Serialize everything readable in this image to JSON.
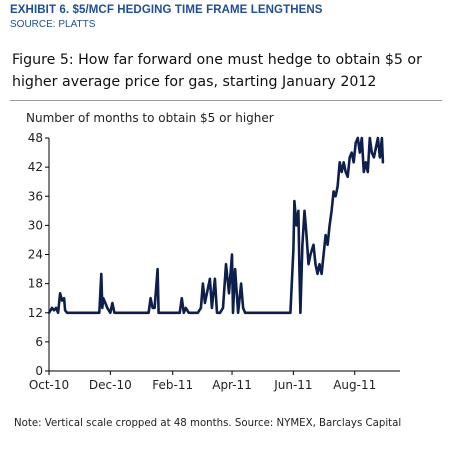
{
  "header": {
    "exhibit_title": "EXHIBIT 6. $5/MCF HEDGING TIME FRAME LENGTHENS",
    "source": "SOURCE: PLATTS"
  },
  "footer": {
    "note": "Note: Vertical scale cropped at 48 months. Source: NYMEX, Barclays Capital"
  },
  "colors": {
    "line": "#0d1f4a",
    "header_text": "#1f4e96"
  },
  "chart_data": {
    "type": "line",
    "title": "Figure 5: How far forward one must hedge to obtain $5 or higher average price for gas, starting January 2012",
    "ylabel": "Number of months to obtain $5 or higher",
    "xlabel": "",
    "xlim": [
      "2010-10-01",
      "2011-09-15"
    ],
    "ylim": [
      0,
      48
    ],
    "yticks": [
      0,
      6,
      12,
      18,
      24,
      30,
      36,
      42,
      48
    ],
    "xtick_labels": [
      "Oct-10",
      "Dec-10",
      "Feb-11",
      "Apr-11",
      "Jun-11",
      "Aug-11"
    ],
    "xtick_dates": [
      "2010-10-01",
      "2010-12-01",
      "2011-02-01",
      "2011-04-01",
      "2011-06-01",
      "2011-08-01"
    ],
    "grid": false,
    "legend": "none",
    "series": [
      {
        "x": [
          "2010-10-01",
          "2010-10-04",
          "2010-10-06",
          "2010-10-08",
          "2010-10-10",
          "2010-10-12",
          "2010-10-14",
          "2010-10-16",
          "2010-10-17",
          "2010-10-19",
          "2010-10-21",
          "2010-10-23",
          "2010-10-25",
          "2010-10-27",
          "2010-11-01",
          "2010-11-10",
          "2010-11-20",
          "2010-11-22",
          "2010-11-23",
          "2010-11-24",
          "2010-11-26",
          "2010-11-28",
          "2010-12-01",
          "2010-12-03",
          "2010-12-05",
          "2010-12-07",
          "2010-12-10",
          "2010-12-20",
          "2011-01-01",
          "2011-01-08",
          "2011-01-10",
          "2011-01-12",
          "2011-01-14",
          "2011-01-17",
          "2011-01-18",
          "2011-01-20",
          "2011-01-22",
          "2011-01-24",
          "2011-02-01",
          "2011-02-08",
          "2011-02-10",
          "2011-02-12",
          "2011-02-14",
          "2011-02-17",
          "2011-02-20",
          "2011-02-23",
          "2011-02-26",
          "2011-03-01",
          "2011-03-03",
          "2011-03-05",
          "2011-03-08",
          "2011-03-10",
          "2011-03-12",
          "2011-03-15",
          "2011-03-17",
          "2011-03-20",
          "2011-03-23",
          "2011-03-26",
          "2011-03-29",
          "2011-04-01",
          "2011-04-02",
          "2011-04-04",
          "2011-04-07",
          "2011-04-10",
          "2011-04-12",
          "2011-04-14",
          "2011-04-16",
          "2011-04-18",
          "2011-04-20",
          "2011-04-22",
          "2011-04-24",
          "2011-04-26",
          "2011-04-28",
          "2011-05-01",
          "2011-05-10",
          "2011-05-20",
          "2011-05-27",
          "2011-05-29",
          "2011-06-01",
          "2011-06-02",
          "2011-06-04",
          "2011-06-06",
          "2011-06-07",
          "2011-06-08",
          "2011-06-10",
          "2011-06-12",
          "2011-06-14",
          "2011-06-16",
          "2011-06-18",
          "2011-06-21",
          "2011-06-23",
          "2011-06-25",
          "2011-06-27",
          "2011-06-29",
          "2011-07-01",
          "2011-07-03",
          "2011-07-05",
          "2011-07-07",
          "2011-07-09",
          "2011-07-11",
          "2011-07-13",
          "2011-07-15",
          "2011-07-17",
          "2011-07-19",
          "2011-07-21",
          "2011-07-23",
          "2011-07-25",
          "2011-07-27",
          "2011-07-29",
          "2011-07-31",
          "2011-08-02",
          "2011-08-04",
          "2011-08-06",
          "2011-08-08",
          "2011-08-10",
          "2011-08-12",
          "2011-08-14",
          "2011-08-16",
          "2011-08-18",
          "2011-08-20",
          "2011-08-22",
          "2011-08-24",
          "2011-08-26",
          "2011-08-28",
          "2011-08-29"
        ],
        "values": [
          12,
          13,
          12.5,
          13,
          12,
          16,
          14.5,
          15,
          12.5,
          12,
          12,
          12,
          12,
          12,
          12,
          12,
          12,
          20,
          13,
          15,
          14,
          13,
          12,
          14,
          12,
          12,
          12,
          12,
          12,
          12,
          15,
          13,
          13,
          21,
          12,
          12,
          12,
          12,
          12,
          12,
          15,
          12,
          13,
          12,
          12,
          12,
          12,
          13,
          18,
          14,
          17,
          19,
          13,
          19,
          12,
          12,
          13,
          22,
          16,
          24,
          12,
          21,
          12,
          18,
          13,
          12,
          12,
          12,
          12,
          12,
          12,
          12,
          12,
          12,
          12,
          12,
          12,
          12,
          25,
          35,
          30,
          33,
          21,
          12,
          26,
          33,
          28,
          22,
          24,
          26,
          22,
          20,
          22,
          20,
          24,
          28,
          26,
          30,
          33,
          37,
          36,
          38,
          43,
          41,
          43,
          41,
          40,
          44,
          45,
          43,
          47,
          48,
          45,
          48,
          41,
          43,
          41,
          48,
          45,
          44,
          46,
          48,
          44,
          48,
          43
        ]
      }
    ]
  }
}
